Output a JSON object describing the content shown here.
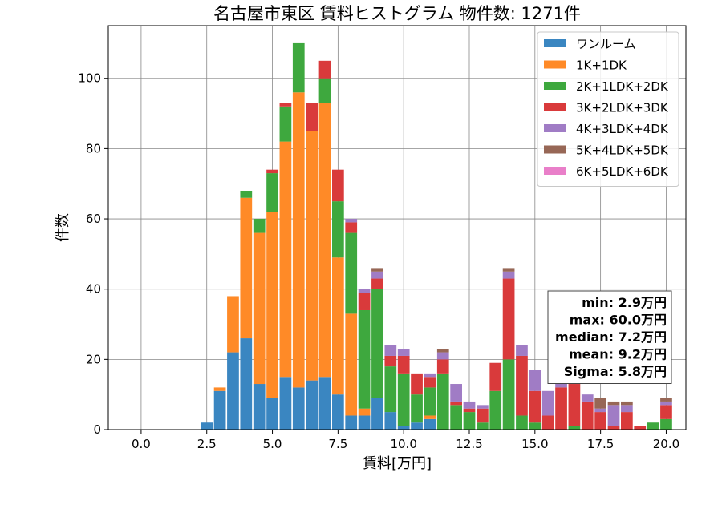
{
  "chart_data": {
    "type": "bar",
    "stacked": true,
    "title": "名古屋市東区 賃料ヒストグラム 物件数: 1271件",
    "xlabel": "賃料[万円]",
    "ylabel": "件数",
    "xlim": [
      -1.25,
      20.75
    ],
    "ylim": [
      0,
      115
    ],
    "xticks": [
      0,
      2.5,
      5,
      7.5,
      10,
      12.5,
      15,
      17.5,
      20
    ],
    "xtick_labels": [
      "0.0",
      "2.5",
      "5.0",
      "7.5",
      "10.0",
      "12.5",
      "15.0",
      "17.5",
      "20.0"
    ],
    "yticks": [
      0,
      20,
      40,
      60,
      80,
      100
    ],
    "ytick_labels": [
      "0",
      "20",
      "40",
      "60",
      "80",
      "100"
    ],
    "grid": true,
    "legend_position": "top-right",
    "bin_width": 0.5,
    "x": [
      2.5,
      3.0,
      3.5,
      4.0,
      4.5,
      5.0,
      5.5,
      6.0,
      6.5,
      7.0,
      7.5,
      8.0,
      8.5,
      9.0,
      9.5,
      10.0,
      10.5,
      11.0,
      11.5,
      12.0,
      12.5,
      13.0,
      13.5,
      14.0,
      14.5,
      15.0,
      15.5,
      16.0,
      16.5,
      17.0,
      17.5,
      18.0,
      18.5,
      19.0,
      19.5,
      20.0
    ],
    "series": [
      {
        "name": "ワンルーム",
        "color": "#3a86c1",
        "values": [
          2,
          11,
          22,
          26,
          13,
          9,
          15,
          12,
          14,
          15,
          10,
          4,
          4,
          9,
          5,
          1,
          2,
          3,
          0,
          0,
          0,
          0,
          0,
          0,
          0,
          0,
          0,
          0,
          0,
          0,
          0,
          0,
          0,
          0,
          0,
          0
        ]
      },
      {
        "name": "1K+1DK",
        "color": "#ff8a27",
        "values": [
          0,
          1,
          16,
          40,
          43,
          53,
          67,
          84,
          71,
          78,
          39,
          29,
          2,
          0,
          0,
          0,
          0,
          1,
          0,
          0,
          0,
          0,
          0,
          0,
          0,
          0,
          0,
          0,
          0,
          0,
          0,
          0,
          0,
          0,
          0,
          0
        ]
      },
      {
        "name": "2K+1LDK+2DK",
        "color": "#3ea83e",
        "values": [
          0,
          0,
          0,
          2,
          4,
          11,
          10,
          14,
          0,
          7,
          16,
          23,
          28,
          31,
          13,
          15,
          8,
          8,
          16,
          7,
          5,
          2,
          11,
          20,
          4,
          2,
          0,
          0,
          1,
          0,
          0,
          0,
          0,
          0,
          2,
          3
        ]
      },
      {
        "name": "3K+2LDK+3DK",
        "color": "#d93a3b",
        "values": [
          0,
          0,
          0,
          0,
          0,
          1,
          1,
          0,
          8,
          5,
          9,
          3,
          5,
          3,
          3,
          5,
          6,
          3,
          4,
          1,
          1,
          4,
          8,
          23,
          17,
          9,
          4,
          12,
          12,
          8,
          5,
          1,
          5,
          1,
          0,
          4
        ]
      },
      {
        "name": "4K+3LDK+4DK",
        "color": "#a07cc5",
        "values": [
          0,
          0,
          0,
          0,
          0,
          0,
          0,
          0,
          0,
          0,
          0,
          1,
          1,
          2,
          3,
          2,
          0,
          1,
          2,
          5,
          2,
          1,
          0,
          2,
          3,
          6,
          7,
          3,
          2,
          2,
          1,
          6,
          2,
          0,
          0,
          1
        ]
      },
      {
        "name": "5K+4LDK+5DK",
        "color": "#976756",
        "values": [
          0,
          0,
          0,
          0,
          0,
          0,
          0,
          0,
          0,
          0,
          0,
          0,
          0,
          1,
          0,
          0,
          0,
          0,
          1,
          0,
          0,
          0,
          0,
          1,
          0,
          0,
          0,
          0,
          0,
          0,
          3,
          1,
          1,
          0,
          0,
          1
        ]
      },
      {
        "name": "6K+5LDK+6DK",
        "color": "#e97fc9",
        "values": [
          0,
          0,
          0,
          0,
          0,
          0,
          0,
          0,
          0,
          0,
          0,
          0,
          0,
          0,
          0,
          0,
          0,
          0,
          0,
          0,
          0,
          0,
          0,
          0,
          0,
          0,
          0,
          0,
          0,
          0,
          0,
          0,
          0,
          0,
          0,
          0
        ]
      }
    ],
    "stats": [
      "min: 2.9万円",
      "max: 60.0万円",
      "median: 7.2万円",
      "mean: 9.2万円",
      "Sigma: 5.8万円"
    ]
  }
}
